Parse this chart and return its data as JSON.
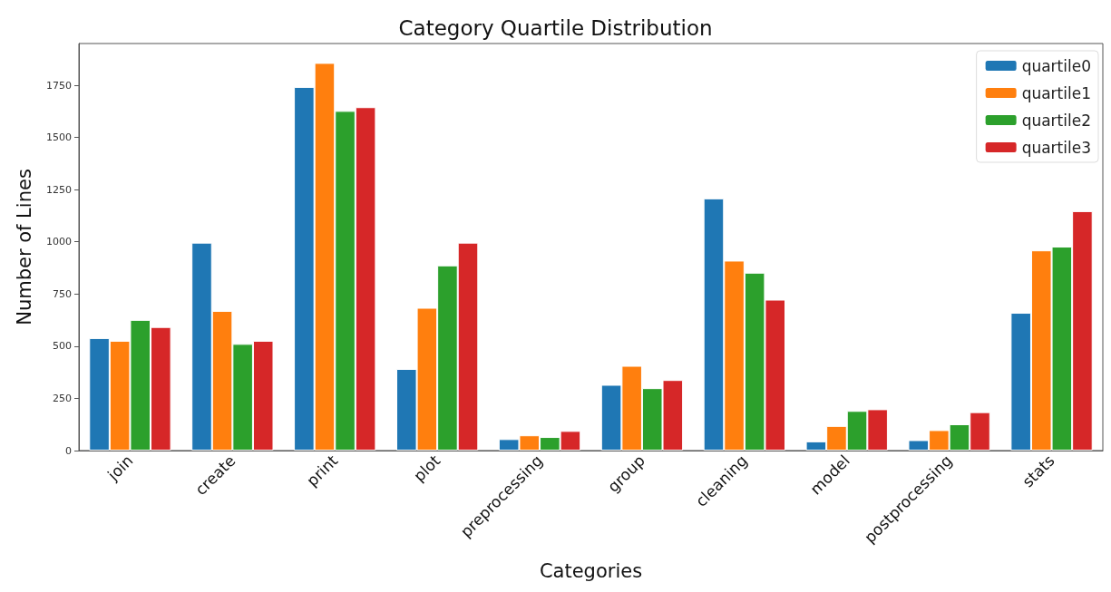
{
  "chart_data": {
    "type": "bar",
    "title": "Category Quartile Distribution",
    "xlabel": "Categories",
    "ylabel": "Number of Lines",
    "categories": [
      "join",
      "create",
      "print",
      "plot",
      "preprocessing",
      "group",
      "cleaning",
      "model",
      "postprocessing",
      "stats"
    ],
    "series": [
      {
        "name": "quartile0",
        "color": "#1f77b4",
        "values": [
          539,
          996,
          1742,
          391,
          55,
          315,
          1208,
          44,
          50,
          660
        ]
      },
      {
        "name": "quartile1",
        "color": "#ff7f0e",
        "values": [
          526,
          669,
          1857,
          684,
          73,
          406,
          910,
          118,
          98,
          959
        ]
      },
      {
        "name": "quartile2",
        "color": "#2ca02c",
        "values": [
          626,
          511,
          1627,
          887,
          65,
          299,
          852,
          190,
          126,
          977
        ]
      },
      {
        "name": "quartile3",
        "color": "#d62728",
        "values": [
          592,
          526,
          1645,
          996,
          94,
          338,
          723,
          198,
          184,
          1147
        ]
      }
    ],
    "ylim": [
      0,
      1950
    ],
    "yticks": [
      0,
      250,
      500,
      750,
      1000,
      1250,
      1500,
      1750
    ],
    "grid": false,
    "legend": "top right"
  }
}
